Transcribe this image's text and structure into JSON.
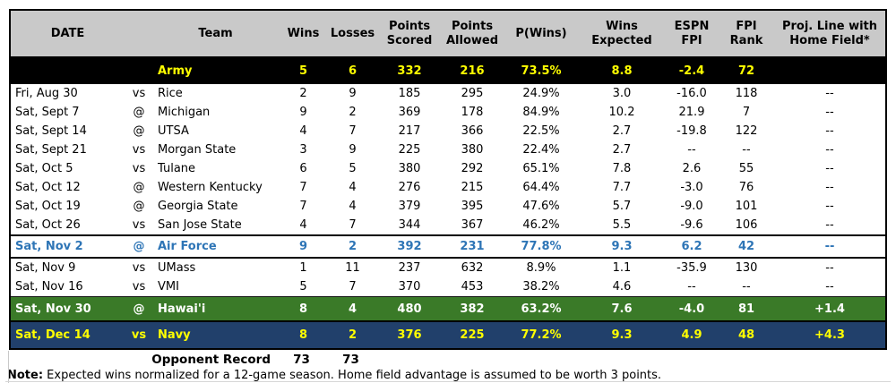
{
  "chart_data": {
    "type": "table",
    "title": "Army schedule with win expectancy and FPI projections",
    "columns": [
      {
        "key": "date",
        "label": "DATE"
      },
      {
        "key": "at",
        "label": ""
      },
      {
        "key": "team",
        "label": "Team"
      },
      {
        "key": "wins",
        "label": "Wins"
      },
      {
        "key": "losses",
        "label": "Losses"
      },
      {
        "key": "ps",
        "label": "Points Scored"
      },
      {
        "key": "pa",
        "label": "Points Allowed"
      },
      {
        "key": "pwins",
        "label": "P(Wins)"
      },
      {
        "key": "we",
        "label": "Wins Expected"
      },
      {
        "key": "fpi",
        "label": "ESPN FPI"
      },
      {
        "key": "rank",
        "label": "FPI Rank"
      },
      {
        "key": "proj",
        "label": "Proj. Line with Home Field*"
      }
    ],
    "rows": [
      {
        "slug": "army",
        "variant": "army",
        "date": "",
        "at": "",
        "team": "Army",
        "wins": "5",
        "losses": "6",
        "ps": "332",
        "pa": "216",
        "pwins": "73.5%",
        "we": "8.8",
        "fpi": "-2.4",
        "rank": "72",
        "proj": ""
      },
      {
        "slug": "rice",
        "variant": "",
        "date": "Fri, Aug 30",
        "at": "vs",
        "team": "Rice",
        "wins": "2",
        "losses": "9",
        "ps": "185",
        "pa": "295",
        "pwins": "24.9%",
        "we": "3.0",
        "fpi": "-16.0",
        "rank": "118",
        "proj": "--"
      },
      {
        "slug": "michigan",
        "variant": "",
        "date": "Sat, Sept 7",
        "at": "@",
        "team": "Michigan",
        "wins": "9",
        "losses": "2",
        "ps": "369",
        "pa": "178",
        "pwins": "84.9%",
        "we": "10.2",
        "fpi": "21.9",
        "rank": "7",
        "proj": "--"
      },
      {
        "slug": "utsa",
        "variant": "",
        "date": "Sat, Sept 14",
        "at": "@",
        "team": "UTSA",
        "wins": "4",
        "losses": "7",
        "ps": "217",
        "pa": "366",
        "pwins": "22.5%",
        "we": "2.7",
        "fpi": "-19.8",
        "rank": "122",
        "proj": "--"
      },
      {
        "slug": "morgan-state",
        "variant": "",
        "date": "Sat, Sept 21",
        "at": "vs",
        "team": "Morgan State",
        "wins": "3",
        "losses": "9",
        "ps": "225",
        "pa": "380",
        "pwins": "22.4%",
        "we": "2.7",
        "fpi": "--",
        "rank": "--",
        "proj": "--"
      },
      {
        "slug": "tulane",
        "variant": "",
        "date": "Sat, Oct 5",
        "at": "vs",
        "team": "Tulane",
        "wins": "6",
        "losses": "5",
        "ps": "380",
        "pa": "292",
        "pwins": "65.1%",
        "we": "7.8",
        "fpi": "2.6",
        "rank": "55",
        "proj": "--"
      },
      {
        "slug": "western-kentucky",
        "variant": "",
        "date": "Sat, Oct 12",
        "at": "@",
        "team": "Western Kentucky",
        "wins": "7",
        "losses": "4",
        "ps": "276",
        "pa": "215",
        "pwins": "64.4%",
        "we": "7.7",
        "fpi": "-3.0",
        "rank": "76",
        "proj": "--"
      },
      {
        "slug": "georgia-state",
        "variant": "",
        "date": "Sat, Oct 19",
        "at": "@",
        "team": "Georgia State",
        "wins": "7",
        "losses": "4",
        "ps": "379",
        "pa": "395",
        "pwins": "47.6%",
        "we": "5.7",
        "fpi": "-9.0",
        "rank": "101",
        "proj": "--"
      },
      {
        "slug": "san-jose-state",
        "variant": "",
        "date": "Sat, Oct 26",
        "at": "vs",
        "team": "San Jose State",
        "wins": "4",
        "losses": "7",
        "ps": "344",
        "pa": "367",
        "pwins": "46.2%",
        "we": "5.5",
        "fpi": "-9.6",
        "rank": "106",
        "proj": "--"
      },
      {
        "slug": "air-force",
        "variant": "airforce",
        "date": "Sat, Nov 2",
        "at": "@",
        "team": "Air Force",
        "wins": "9",
        "losses": "2",
        "ps": "392",
        "pa": "231",
        "pwins": "77.8%",
        "we": "9.3",
        "fpi": "6.2",
        "rank": "42",
        "proj": "--"
      },
      {
        "slug": "umass",
        "variant": "",
        "date": "Sat, Nov 9",
        "at": "vs",
        "team": "UMass",
        "wins": "1",
        "losses": "11",
        "ps": "237",
        "pa": "632",
        "pwins": "8.9%",
        "we": "1.1",
        "fpi": "-35.9",
        "rank": "130",
        "proj": "--"
      },
      {
        "slug": "vmi",
        "variant": "",
        "date": "Sat, Nov 16",
        "at": "vs",
        "team": "VMI",
        "wins": "5",
        "losses": "7",
        "ps": "370",
        "pa": "453",
        "pwins": "38.2%",
        "we": "4.6",
        "fpi": "--",
        "rank": "--",
        "proj": "--"
      },
      {
        "slug": "hawaii",
        "variant": "hawaii",
        "date": "Sat, Nov 30",
        "at": "@",
        "team": "Hawai'i",
        "wins": "8",
        "losses": "4",
        "ps": "480",
        "pa": "382",
        "pwins": "63.2%",
        "we": "7.6",
        "fpi": "-4.0",
        "rank": "81",
        "proj": "+1.4"
      },
      {
        "slug": "navy",
        "variant": "navy",
        "date": "Sat, Dec 14",
        "at": "vs",
        "team": "Navy",
        "wins": "8",
        "losses": "2",
        "ps": "376",
        "pa": "225",
        "pwins": "77.2%",
        "we": "9.3",
        "fpi": "4.9",
        "rank": "48",
        "proj": "+4.3"
      }
    ]
  },
  "footer": {
    "opponent_record_label": "Opponent Record",
    "opponent_wins": "73",
    "opponent_losses": "73",
    "note_label": "Note:",
    "note_text": " Expected wins normalized for a 12-game season.  Home field advantage is assumed to be worth 3 points."
  },
  "colors": {
    "header_bg": "#c9c9c9",
    "army_row_bg": "#000000",
    "highlight_yellow": "#ffff00",
    "airforce_blue": "#2e75b6",
    "hawaii_green": "#3a7a28",
    "navy_blue": "#21406b"
  }
}
